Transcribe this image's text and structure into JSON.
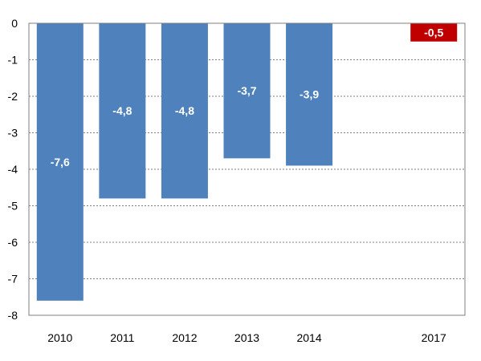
{
  "chart_data": {
    "type": "bar",
    "categories": [
      "2010",
      "2011",
      "2012",
      "2013",
      "2014",
      "",
      "2017"
    ],
    "values": [
      -7.6,
      -4.8,
      -4.8,
      -3.7,
      -3.9,
      null,
      -0.5
    ],
    "data_labels": [
      "-7,6",
      "-4,8",
      "-4,8",
      "-3,7",
      "-3,9",
      "",
      "-0,5"
    ],
    "colors": [
      "#4f81bd",
      "#4f81bd",
      "#4f81bd",
      "#4f81bd",
      "#4f81bd",
      "#4f81bd",
      "#c00000"
    ],
    "ylim": [
      -8,
      0
    ],
    "yticks": [
      0,
      -1,
      -2,
      -3,
      -4,
      -5,
      -6,
      -7,
      -8
    ],
    "ytick_labels": [
      "0",
      "-1",
      "-2",
      "-3",
      "-4",
      "-5",
      "-6",
      "-7",
      "-8"
    ],
    "grid": true,
    "title": "",
    "xlabel": "",
    "ylabel": ""
  }
}
